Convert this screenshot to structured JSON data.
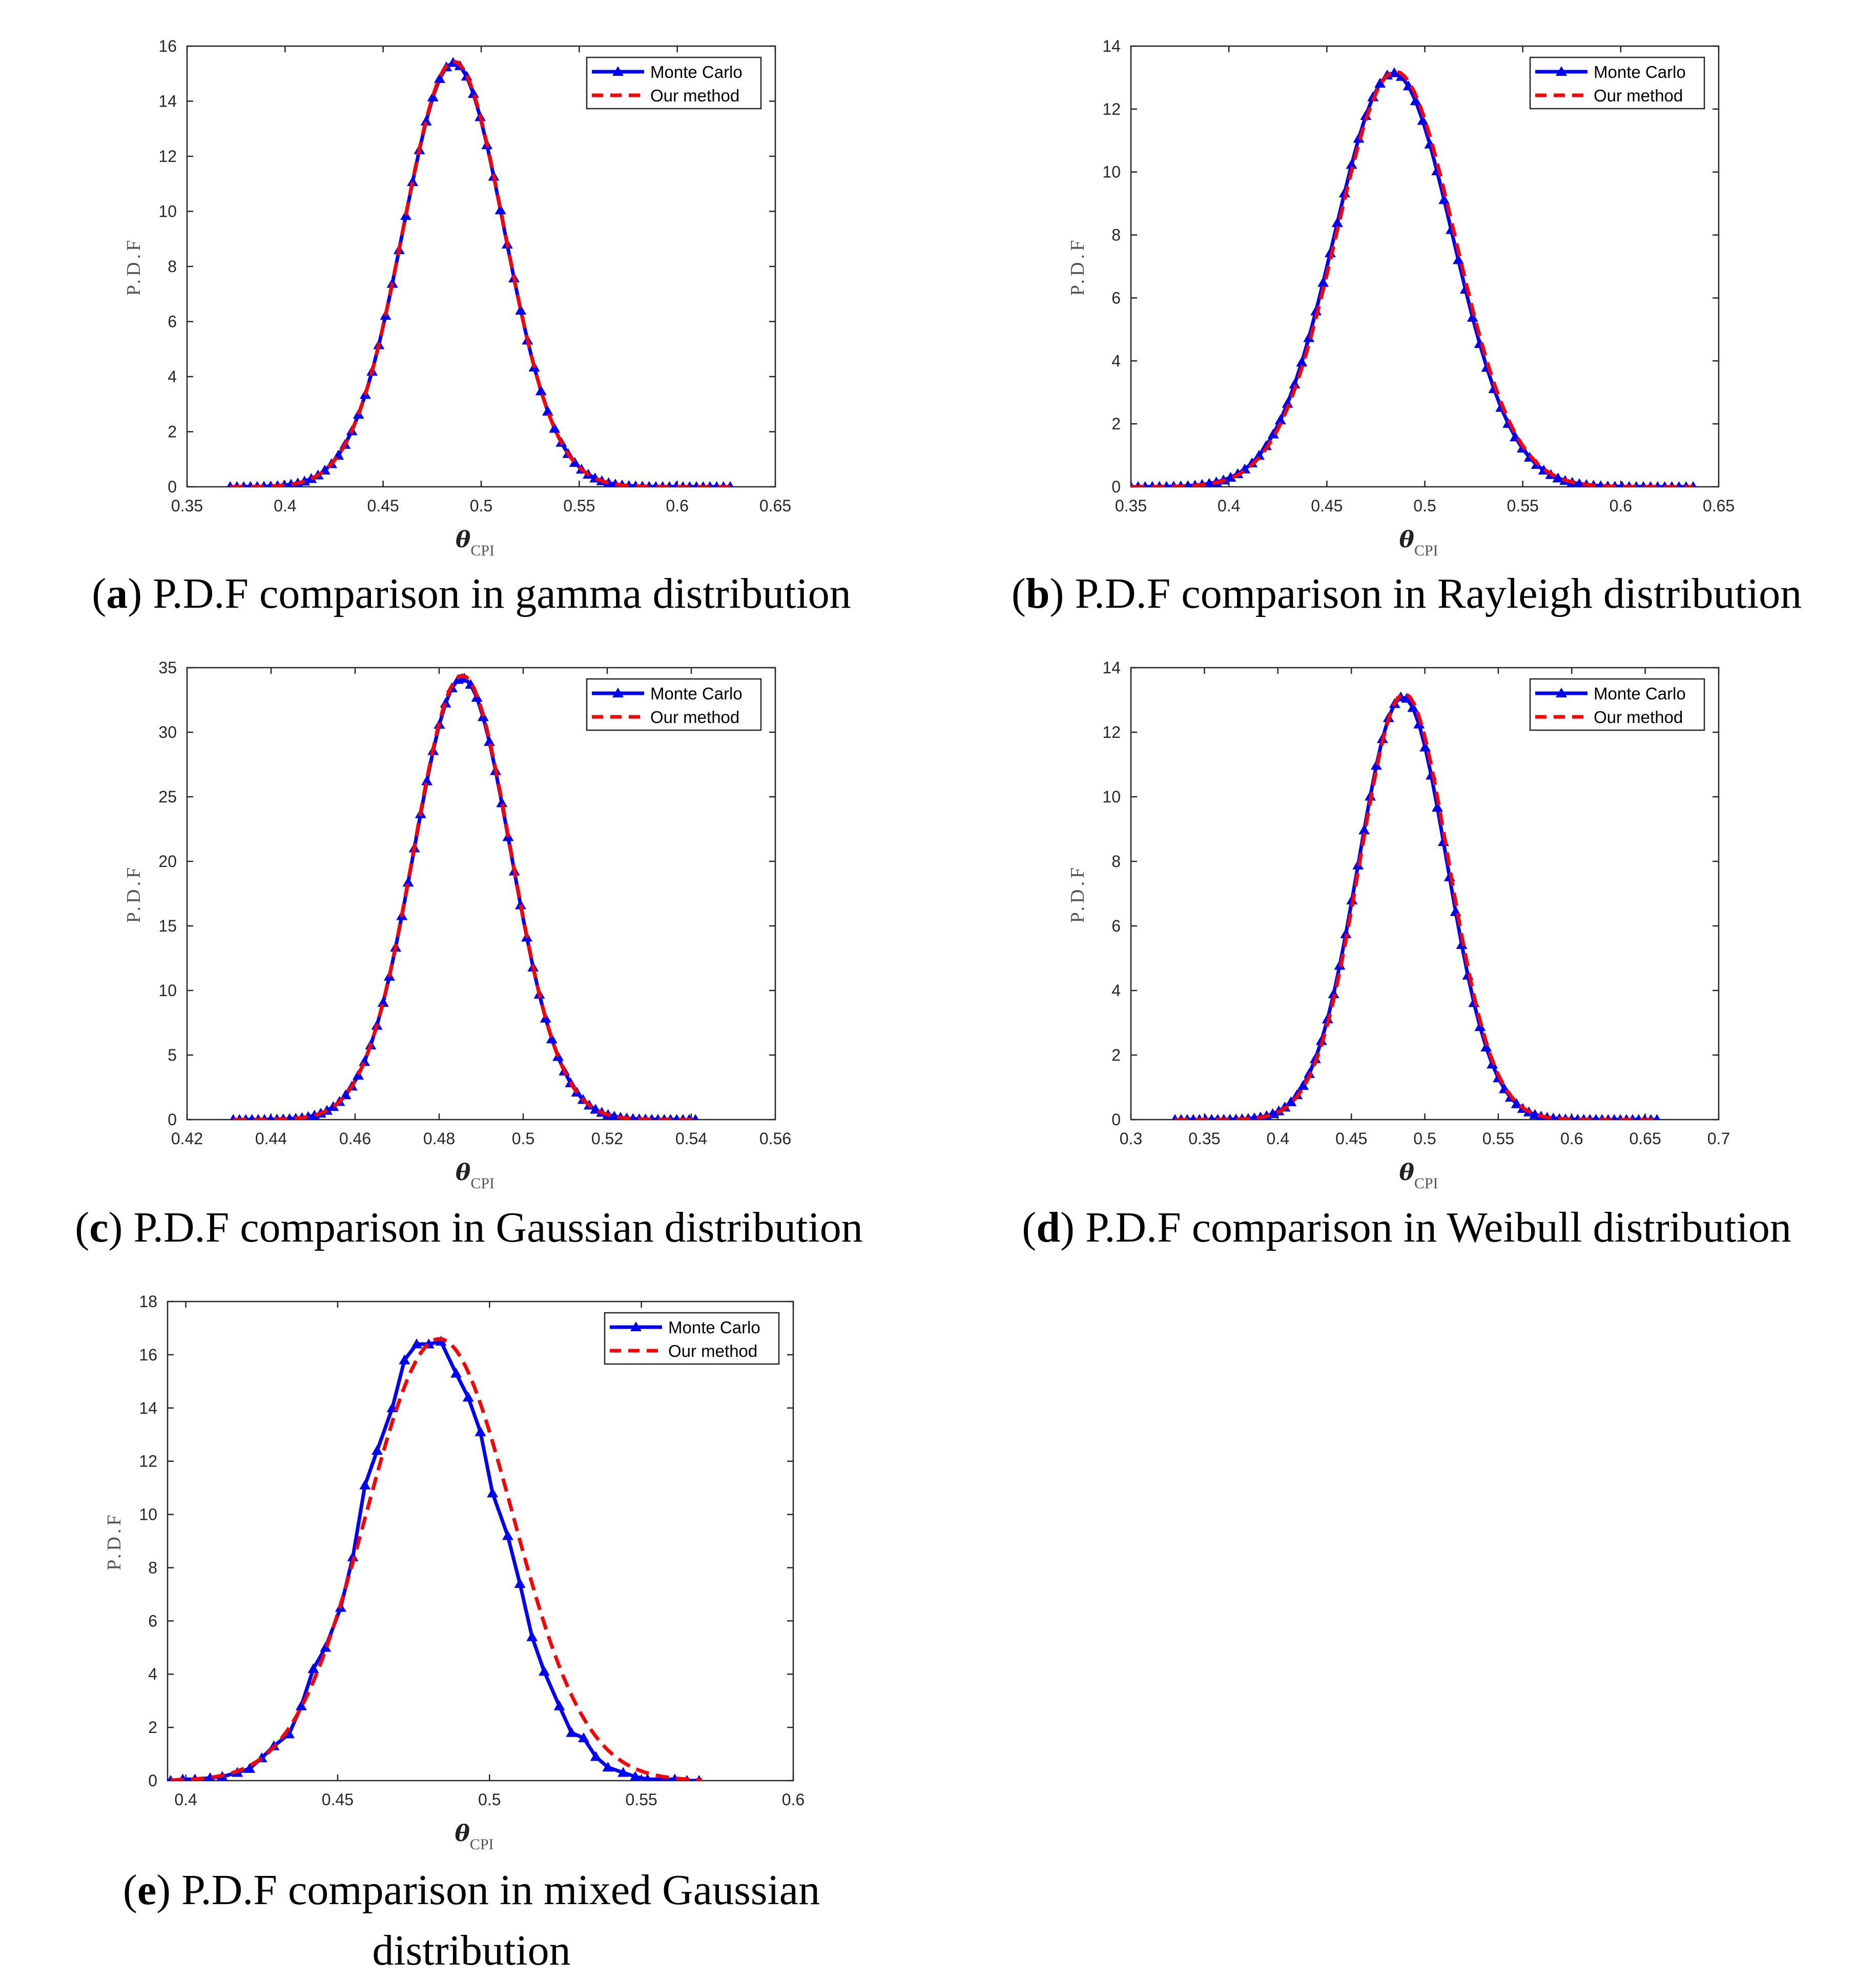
{
  "legend": {
    "series1": "Monte Carlo",
    "series2": "Our method"
  },
  "colors": {
    "monte_carlo": "#0000ff",
    "our_method": "#ff0000",
    "axis": "#262626"
  },
  "chart_data": [
    {
      "id": "a",
      "type": "line",
      "caption_letter": "a",
      "caption_text": "P.D.F comparison in gamma distribution",
      "xlabel": "θ",
      "xlabel_sub": "CPI",
      "ylabel": "P.D.F",
      "xlim": [
        0.35,
        0.65
      ],
      "ylim": [
        0,
        16
      ],
      "xticks": [
        "0.35",
        "0.4",
        "0.45",
        "0.5",
        "0.55",
        "0.6",
        "0.65"
      ],
      "yticks": [
        "0",
        "2",
        "4",
        "6",
        "8",
        "10",
        "12",
        "14",
        "16"
      ],
      "series": [
        {
          "name": "Monte Carlo",
          "dist": {
            "mu": 0.486,
            "sigma": 0.0258,
            "peak": 15.4,
            "xmin": 0.372,
            "xmax": 0.627,
            "n": 75
          }
        },
        {
          "name": "Our method",
          "dist": {
            "mu": 0.486,
            "sigma": 0.0258,
            "peak": 15.45,
            "xmin": 0.372,
            "xmax": 0.627,
            "n": 120
          }
        }
      ]
    },
    {
      "id": "b",
      "type": "line",
      "caption_letter": "b",
      "caption_text": "P.D.F comparison in Rayleigh distribution",
      "xlabel": "θ",
      "xlabel_sub": "CPI",
      "ylabel": "P.D.F",
      "xlim": [
        0.35,
        0.65
      ],
      "ylim": [
        0,
        14
      ],
      "xticks": [
        "0.35",
        "0.4",
        "0.45",
        "0.5",
        "0.55",
        "0.6",
        "0.65"
      ],
      "yticks": [
        "0",
        "2",
        "4",
        "6",
        "8",
        "10",
        "12",
        "14"
      ],
      "series": [
        {
          "name": "Monte Carlo",
          "dist": {
            "mu": 0.484,
            "sigma": 0.0302,
            "peak": 13.15,
            "xmin": 0.35,
            "xmax": 0.637,
            "n": 80
          }
        },
        {
          "name": "Our method",
          "dist": {
            "mu": 0.485,
            "sigma": 0.0302,
            "peak": 13.2,
            "xmin": 0.35,
            "xmax": 0.637,
            "n": 120
          }
        }
      ]
    },
    {
      "id": "c",
      "type": "line",
      "caption_letter": "c",
      "caption_text": "P.D.F comparison in Gaussian distribution",
      "xlabel": "θ",
      "xlabel_sub": "CPI",
      "ylabel": "P.D.F",
      "xlim": [
        0.42,
        0.56
      ],
      "ylim": [
        0,
        35
      ],
      "xticks": [
        "0.42",
        "0.44",
        "0.46",
        "0.48",
        "0.5",
        "0.52",
        "0.54",
        "0.56"
      ],
      "yticks": [
        "0",
        "5",
        "10",
        "15",
        "20",
        "25",
        "30",
        "35"
      ],
      "series": [
        {
          "name": "Monte Carlo",
          "dist": {
            "mu": 0.4855,
            "sigma": 0.01155,
            "peak": 34.2,
            "xmin": 0.431,
            "xmax": 0.541,
            "n": 75
          }
        },
        {
          "name": "Our method",
          "dist": {
            "mu": 0.4855,
            "sigma": 0.01155,
            "peak": 34.4,
            "xmin": 0.431,
            "xmax": 0.541,
            "n": 120
          }
        }
      ]
    },
    {
      "id": "d",
      "type": "line",
      "caption_letter": "d",
      "caption_text": "P.D.F comparison in Weibull distribution",
      "xlabel": "θ",
      "xlabel_sub": "CPI",
      "ylabel": "P.D.F",
      "xlim": [
        0.3,
        0.7
      ],
      "ylim": [
        0,
        14
      ],
      "xticks": [
        "0.3",
        "0.35",
        "0.4",
        "0.45",
        "0.5",
        "0.55",
        "0.6",
        "0.65",
        "0.7"
      ],
      "yticks": [
        "0",
        "2",
        "4",
        "6",
        "8",
        "10",
        "12",
        "14"
      ],
      "series": [
        {
          "name": "Monte Carlo",
          "dist": {
            "mu": 0.485,
            "sigma": 0.0302,
            "peak": 13.1,
            "xmin": 0.33,
            "xmax": 0.658,
            "n": 80
          }
        },
        {
          "name": "Our method",
          "dist": {
            "mu": 0.486,
            "sigma": 0.0302,
            "peak": 13.2,
            "xmin": 0.33,
            "xmax": 0.658,
            "n": 120
          }
        }
      ]
    },
    {
      "id": "e",
      "type": "line",
      "caption_letter": "e",
      "caption_text": "P.D.F comparison in mixed Gaussian",
      "caption_text_line2": "distribution",
      "xlabel": "θ",
      "xlabel_sub": "CPI",
      "ylabel": "P.D.F",
      "xlim": [
        0.394,
        0.6
      ],
      "ylim": [
        0,
        18
      ],
      "xticks": [
        "0.4",
        "0.45",
        "0.5",
        "0.55",
        "0.6"
      ],
      "xtick_values": [
        0.4,
        0.45,
        0.5,
        0.55,
        0.6
      ],
      "yticks": [
        "0",
        "2",
        "4",
        "6",
        "8",
        "10",
        "12",
        "14",
        "16",
        "18"
      ],
      "series": [
        {
          "name": "Monte Carlo",
          "x": [
            0.395,
            0.399,
            0.403,
            0.408,
            0.412,
            0.417,
            0.421,
            0.425,
            0.429,
            0.434,
            0.438,
            0.442,
            0.446,
            0.451,
            0.455,
            0.459,
            0.463,
            0.468,
            0.472,
            0.476,
            0.48,
            0.484,
            0.489,
            0.493,
            0.497,
            0.501,
            0.506,
            0.51,
            0.514,
            0.518,
            0.523,
            0.527,
            0.531,
            0.535,
            0.539,
            0.544,
            0.548,
            0.552,
            0.556,
            0.561,
            0.565,
            0.569
          ],
          "y": [
            0.0,
            0.05,
            0.05,
            0.1,
            0.15,
            0.3,
            0.45,
            0.85,
            1.3,
            1.75,
            2.8,
            4.2,
            5.0,
            6.5,
            8.4,
            11.1,
            12.4,
            14.0,
            15.8,
            16.4,
            16.4,
            16.5,
            15.3,
            14.4,
            13.1,
            10.8,
            9.2,
            7.4,
            5.4,
            4.1,
            2.8,
            1.8,
            1.6,
            0.9,
            0.5,
            0.3,
            0.15,
            0.05,
            0.05,
            0.05,
            0.0,
            0.0
          ]
        },
        {
          "name": "Our method",
          "dist": {
            "mu": 0.4835,
            "sigma": 0.024,
            "peak": 16.6,
            "xmin": 0.395,
            "xmax": 0.57,
            "n": 120
          }
        }
      ]
    }
  ]
}
